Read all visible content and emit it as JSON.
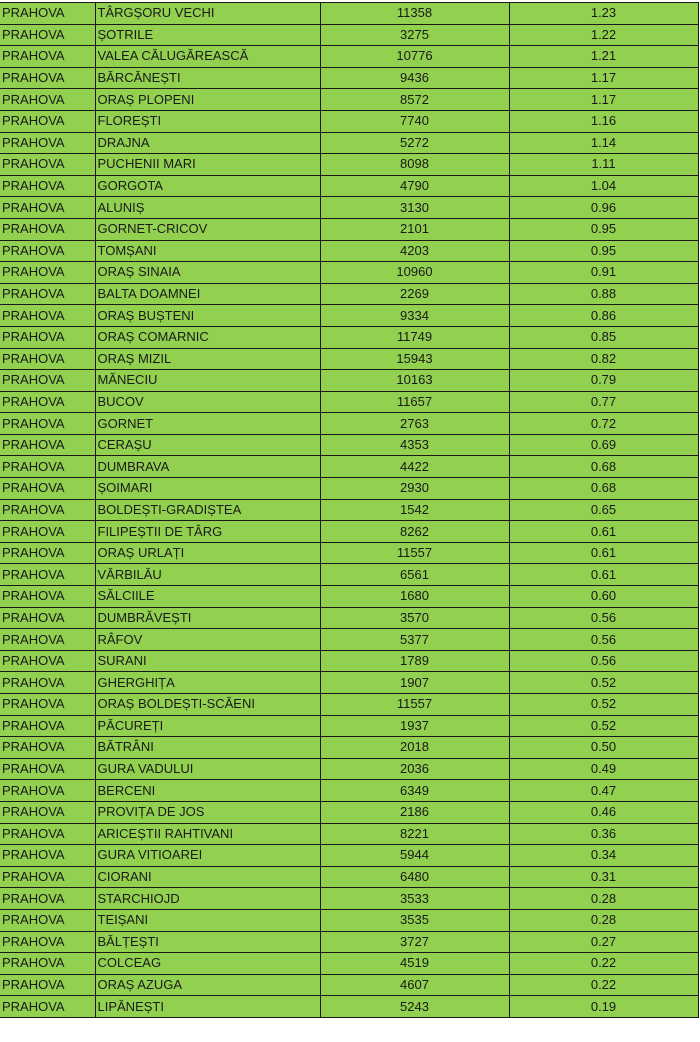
{
  "table": {
    "rows": [
      [
        "PRAHOVA",
        "TÂRGȘORU VECHI",
        "11358",
        "1.23"
      ],
      [
        "PRAHOVA",
        "ȘOTRILE",
        "3275",
        "1.22"
      ],
      [
        "PRAHOVA",
        "VALEA CĂLUGĂREASCĂ",
        "10776",
        "1.21"
      ],
      [
        "PRAHOVA",
        "BĂRCĂNEȘTI",
        "9436",
        "1.17"
      ],
      [
        "PRAHOVA",
        "ORAȘ PLOPENI",
        "8572",
        "1.17"
      ],
      [
        "PRAHOVA",
        "FLOREȘTI",
        "7740",
        "1.16"
      ],
      [
        "PRAHOVA",
        "DRAJNA",
        "5272",
        "1.14"
      ],
      [
        "PRAHOVA",
        "PUCHENII MARI",
        "8098",
        "1.11"
      ],
      [
        "PRAHOVA",
        "GORGOTA",
        "4790",
        "1.04"
      ],
      [
        "PRAHOVA",
        "ALUNIȘ",
        "3130",
        "0.96"
      ],
      [
        "PRAHOVA",
        "GORNET-CRICOV",
        "2101",
        "0.95"
      ],
      [
        "PRAHOVA",
        "TOMȘANI",
        "4203",
        "0.95"
      ],
      [
        "PRAHOVA",
        "ORAȘ SINAIA",
        "10960",
        "0.91"
      ],
      [
        "PRAHOVA",
        "BALTA DOAMNEI",
        "2269",
        "0.88"
      ],
      [
        "PRAHOVA",
        "ORAȘ BUȘTENI",
        "9334",
        "0.86"
      ],
      [
        "PRAHOVA",
        "ORAȘ COMARNIC",
        "11749",
        "0.85"
      ],
      [
        "PRAHOVA",
        "ORAȘ MIZIL",
        "15943",
        "0.82"
      ],
      [
        "PRAHOVA",
        "MĂNECIU",
        "10163",
        "0.79"
      ],
      [
        "PRAHOVA",
        "BUCOV",
        "11657",
        "0.77"
      ],
      [
        "PRAHOVA",
        "GORNET",
        "2763",
        "0.72"
      ],
      [
        "PRAHOVA",
        "CERAȘU",
        "4353",
        "0.69"
      ],
      [
        "PRAHOVA",
        "DUMBRAVA",
        "4422",
        "0.68"
      ],
      [
        "PRAHOVA",
        "ȘOIMARI",
        "2930",
        "0.68"
      ],
      [
        "PRAHOVA",
        "BOLDEȘTI-GRADIȘTEA",
        "1542",
        "0.65"
      ],
      [
        "PRAHOVA",
        "FILIPEȘTII DE TÂRG",
        "8262",
        "0.61"
      ],
      [
        "PRAHOVA",
        "ORAȘ URLAȚI",
        "11557",
        "0.61"
      ],
      [
        "PRAHOVA",
        "VĂRBILĂU",
        "6561",
        "0.61"
      ],
      [
        "PRAHOVA",
        "SĂLCIILE",
        "1680",
        "0.60"
      ],
      [
        "PRAHOVA",
        "DUMBRĂVEȘTI",
        "3570",
        "0.56"
      ],
      [
        "PRAHOVA",
        "RÂFOV",
        "5377",
        "0.56"
      ],
      [
        "PRAHOVA",
        "SURANI",
        "1789",
        "0.56"
      ],
      [
        "PRAHOVA",
        "GHERGHIȚA",
        "1907",
        "0.52"
      ],
      [
        "PRAHOVA",
        "ORAȘ BOLDEȘTI-SCĂENI",
        "11557",
        "0.52"
      ],
      [
        "PRAHOVA",
        "PĂCUREȚI",
        "1937",
        "0.52"
      ],
      [
        "PRAHOVA",
        "BĂTRÂNI",
        "2018",
        "0.50"
      ],
      [
        "PRAHOVA",
        "GURA VADULUI",
        "2036",
        "0.49"
      ],
      [
        "PRAHOVA",
        "BERCENI",
        "6349",
        "0.47"
      ],
      [
        "PRAHOVA",
        "PROVIȚA DE JOS",
        "2186",
        "0.46"
      ],
      [
        "PRAHOVA",
        "ARICEȘTII RAHTIVANI",
        "8221",
        "0.36"
      ],
      [
        "PRAHOVA",
        "GURA VITIOAREI",
        "5944",
        "0.34"
      ],
      [
        "PRAHOVA",
        "CIORANI",
        "6480",
        "0.31"
      ],
      [
        "PRAHOVA",
        "STARCHIOJD",
        "3533",
        "0.28"
      ],
      [
        "PRAHOVA",
        "TEIȘANI",
        "3535",
        "0.28"
      ],
      [
        "PRAHOVA",
        "BĂLȚEȘTI",
        "3727",
        "0.27"
      ],
      [
        "PRAHOVA",
        "COLCEAG",
        "4519",
        "0.22"
      ],
      [
        "PRAHOVA",
        "ORAȘ AZUGA",
        "4607",
        "0.22"
      ],
      [
        "PRAHOVA",
        "LIPĂNEȘTI",
        "5243",
        "0.19"
      ]
    ]
  },
  "colors": {
    "cell_fill": "#92d050",
    "grid": "#1a1a1a"
  }
}
